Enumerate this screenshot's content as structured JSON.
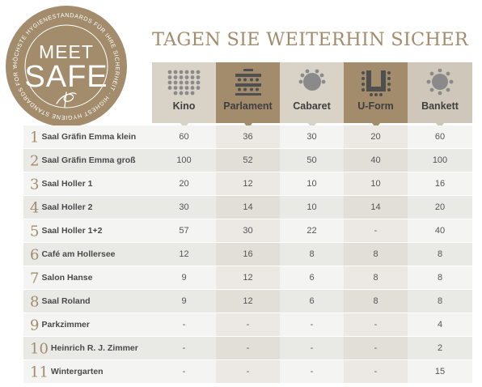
{
  "seal": {
    "line1": "MEET",
    "line2": "SAFE",
    "ring_text": "HÖCHSTE HYGIENESTANDARDS FÜR IHRE SICHERHEIT · HIGHEST HYGIENE STANDARDS FOR YOUR SAFETY ·"
  },
  "title": "TAGEN SIE WEITERHIN SICHER",
  "columns": [
    {
      "label": "Kino",
      "icon": "kino-seating-icon"
    },
    {
      "label": "Parlament",
      "icon": "parlament-seating-icon"
    },
    {
      "label": "Cabaret",
      "icon": "cabaret-seating-icon"
    },
    {
      "label": "U-Form",
      "icon": "u-form-seating-icon"
    },
    {
      "label": "Bankett",
      "icon": "bankett-seating-icon"
    }
  ],
  "rows": [
    {
      "num": "1",
      "name": "Saal Gräfin Emma klein",
      "values": [
        "60",
        "36",
        "30",
        "20",
        "60"
      ]
    },
    {
      "num": "2",
      "name": "Saal Gräfin Emma groß",
      "values": [
        "100",
        "52",
        "50",
        "40",
        "100"
      ]
    },
    {
      "num": "3",
      "name": "Saal Holler 1",
      "values": [
        "20",
        "12",
        "10",
        "10",
        "16"
      ]
    },
    {
      "num": "4",
      "name": "Saal Holler 2",
      "values": [
        "30",
        "14",
        "10",
        "14",
        "20"
      ]
    },
    {
      "num": "5",
      "name": "Saal Holler 1+2",
      "values": [
        "57",
        "30",
        "22",
        "-",
        "40"
      ]
    },
    {
      "num": "6",
      "name": "Café am Hollersee",
      "values": [
        "12",
        "16",
        "8",
        "8",
        "8"
      ]
    },
    {
      "num": "7",
      "name": "Salon Hanse",
      "values": [
        "9",
        "12",
        "6",
        "8",
        "8"
      ]
    },
    {
      "num": "8",
      "name": "Saal Roland",
      "values": [
        "9",
        "12",
        "6",
        "8",
        "8"
      ]
    },
    {
      "num": "9",
      "name": "Parkzimmer",
      "values": [
        "-",
        "-",
        "-",
        "-",
        "4"
      ]
    },
    {
      "num": "10",
      "name": "Heinrich R. J. Zimmer",
      "values": [
        "-",
        "-",
        "-",
        "-",
        "2"
      ]
    },
    {
      "num": "11",
      "name": "Wintergarten",
      "values": [
        "-",
        "-",
        "-",
        "-",
        "15"
      ]
    }
  ],
  "colors": {
    "gold": "#a38c6c",
    "header_light": "#d9d2c7",
    "header_dark": "#a38c6c",
    "header_light_alt": "#cfc7ba",
    "col_alt": "#e7e2da",
    "row_a": "#f4f4f2",
    "row_b": "#e9e9e6"
  }
}
